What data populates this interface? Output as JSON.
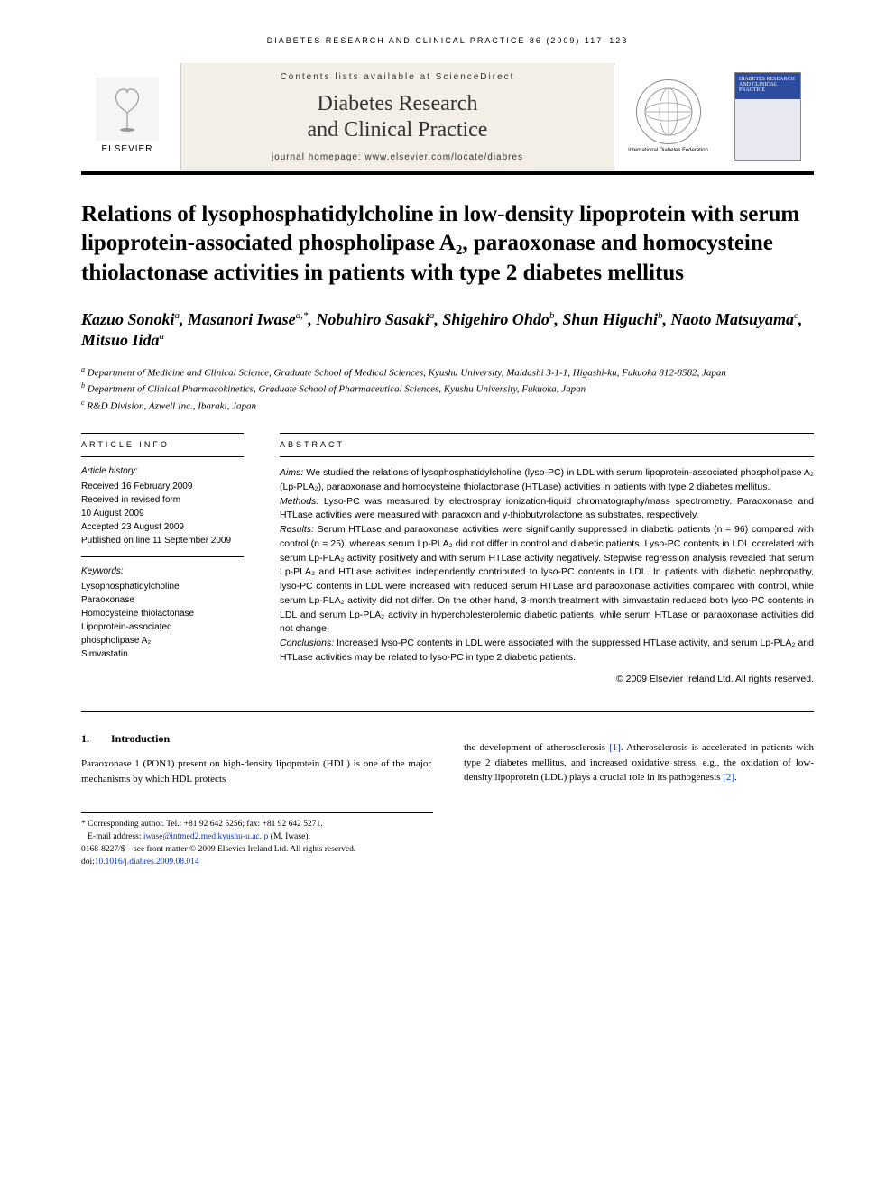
{
  "running_header": "DIABETES RESEARCH AND CLINICAL PRACTICE 86 (2009) 117–123",
  "masthead": {
    "contents_line": "Contents lists available at ScienceDirect",
    "journal_name_line1": "Diabetes Research",
    "journal_name_line2": "and Clinical Practice",
    "homepage": "journal homepage: www.elsevier.com/locate/diabres",
    "elsevier": "ELSEVIER",
    "federation": "International Diabetes Federation",
    "cover_title": "DIABETES RESEARCH AND CLINICAL PRACTICE"
  },
  "title": "Relations of lysophosphatidylcholine in low-density lipoprotein with serum lipoprotein-associated phospholipase A₂, paraoxonase and homocysteine thiolactonase activities in patients with type 2 diabetes mellitus",
  "authors_html": "Kazuo Sonoki<sup>a</sup>, Masanori Iwase<sup>a,*</sup>, Nobuhiro Sasaki<sup>a</sup>, Shigehiro Ohdo<sup>b</sup>, Shun Higuchi<sup>b</sup>, Naoto Matsuyama<sup>c</sup>, Mitsuo Iida<sup>a</sup>",
  "affiliations": {
    "a": "Department of Medicine and Clinical Science, Graduate School of Medical Sciences, Kyushu University, Maidashi 3-1-1, Higashi-ku, Fukuoka 812-8582, Japan",
    "b": "Department of Clinical Pharmacokinetics, Graduate School of Pharmaceutical Sciences, Kyushu University, Fukuoka, Japan",
    "c": "R&D Division, Azwell Inc., Ibaraki, Japan"
  },
  "article_info": {
    "header": "ARTICLE INFO",
    "history_label": "Article history:",
    "history": [
      "Received 16 February 2009",
      "Received in revised form",
      "10 August 2009",
      "Accepted 23 August 2009",
      "Published on line 11 September 2009"
    ],
    "keywords_label": "Keywords:",
    "keywords": [
      "Lysophosphatidylcholine",
      "Paraoxonase",
      "Homocysteine thiolactonase",
      "Lipoprotein-associated",
      "phospholipase A₂",
      "Simvastatin"
    ]
  },
  "abstract": {
    "header": "ABSTRACT",
    "aims_label": "Aims:",
    "aims": "We studied the relations of lysophosphatidylcholine (lyso-PC) in LDL with serum lipoprotein-associated phospholipase A₂ (Lp-PLA₂), paraoxonase and homocysteine thiolactonase (HTLase) activities in patients with type 2 diabetes mellitus.",
    "methods_label": "Methods:",
    "methods": "Lyso-PC was measured by electrospray ionization-liquid chromatography/mass spectrometry. Paraoxonase and HTLase activities were measured with paraoxon and γ-thiobutyrolactone as substrates, respectively.",
    "results_label": "Results:",
    "results": "Serum HTLase and paraoxonase activities were significantly suppressed in diabetic patients (n = 96) compared with control (n = 25), whereas serum Lp-PLA₂ did not differ in control and diabetic patients. Lyso-PC contents in LDL correlated with serum Lp-PLA₂ activity positively and with serum HTLase activity negatively. Stepwise regression analysis revealed that serum Lp-PLA₂ and HTLase activities independently contributed to lyso-PC contents in LDL. In patients with diabetic nephropathy, lyso-PC contents in LDL were increased with reduced serum HTLase and paraoxonase activities compared with control, while serum Lp-PLA₂ activity did not differ. On the other hand, 3-month treatment with simvastatin reduced both lyso-PC contents in LDL and serum Lp-PLA₂ activity in hypercholesterolemic diabetic patients, while serum HTLase or paraoxonase activities did not change.",
    "conclusions_label": "Conclusions:",
    "conclusions": "Increased lyso-PC contents in LDL were associated with the suppressed HTLase activity, and serum Lp-PLA₂ and HTLase activities may be related to lyso-PC in type 2 diabetic patients.",
    "copyright": "© 2009 Elsevier Ireland Ltd. All rights reserved."
  },
  "body": {
    "section_number": "1.",
    "section_title": "Introduction",
    "col1": "Paraoxonase 1 (PON1) present on high-density lipoprotein (HDL) is one of the major mechanisms by which HDL protects",
    "col2": "the development of atherosclerosis [1]. Atherosclerosis is accelerated in patients with type 2 diabetes mellitus, and increased oxidative stress, e.g., the oxidation of low-density lipoprotein (LDL) plays a crucial role in its pathogenesis [2]."
  },
  "footnotes": {
    "corresponding": "* Corresponding author. Tel.: +81 92 642 5256; fax: +81 92 642 5271.",
    "email_label": "E-mail address:",
    "email": "iwase@intmed2.med.kyushu-u.ac.jp",
    "email_who": "(M. Iwase).",
    "issn_line": "0168-8227/$ – see front matter © 2009 Elsevier Ireland Ltd. All rights reserved.",
    "doi_label": "doi:",
    "doi": "10.1016/j.diabres.2009.08.014"
  },
  "colors": {
    "link": "#0033cc",
    "masthead_bg": "#f3efe6",
    "cover_top": "#2c4da0"
  }
}
